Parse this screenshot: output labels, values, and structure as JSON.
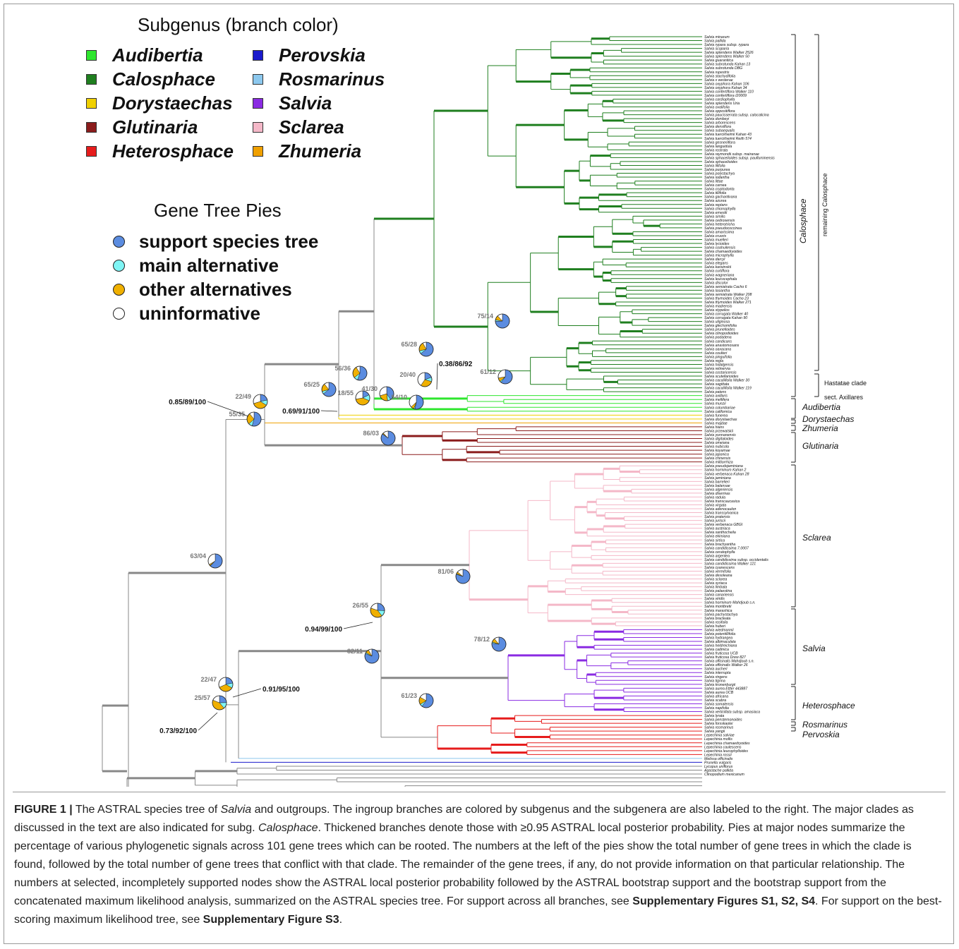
{
  "legend": {
    "title": "Subgenus (branch color)",
    "items": [
      {
        "label": "Audibertia",
        "color": "#2ee62e"
      },
      {
        "label": "Calosphace",
        "color": "#1f7f1f"
      },
      {
        "label": "Dorystaechas",
        "color": "#f0d000"
      },
      {
        "label": "Glutinaria",
        "color": "#8b1c1c"
      },
      {
        "label": "Heterosphace",
        "color": "#e61c1c"
      },
      {
        "label": "Perovskia",
        "color": "#1a1acc"
      },
      {
        "label": "Rosmarinus",
        "color": "#8cc8ee"
      },
      {
        "label": "Salvia",
        "color": "#8a2be2"
      },
      {
        "label": "Sclarea",
        "color": "#f4b8c8"
      },
      {
        "label": "Zhumeria",
        "color": "#f0a000"
      }
    ]
  },
  "pies_legend": {
    "title": "Gene Tree Pies",
    "items": [
      {
        "label": "support species tree",
        "color": "#5b8ce0"
      },
      {
        "label": "main alternative",
        "color": "#7ff5f5"
      },
      {
        "label": "other alternatives",
        "color": "#f0b000"
      },
      {
        "label": "uninformative",
        "color": "#ffffff"
      }
    ]
  },
  "clades": {
    "calosphace": "Calosphace",
    "remaining": "remaining Calosphace",
    "hastatae": "Hastatae clade",
    "axillares": "sect. Axillares",
    "audibertia": "Audibertia",
    "dorystaechas": "Dorystaechas",
    "zhumeria": "Zhumeria",
    "glutinaria": "Glutinaria",
    "sclarea": "Sclarea",
    "salvia": "Salvia",
    "heterosphace": "Heterosphace",
    "rosmarinus": "Rosmarinus",
    "pervoskia": "Pervoskia"
  },
  "pies": [
    {
      "label": "75/14",
      "support": 75,
      "conflict": 14
    },
    {
      "label": "65/28",
      "support": 65,
      "conflict": 28
    },
    {
      "label": "56/36",
      "support": 56,
      "conflict": 36
    },
    {
      "label": "20/40",
      "support": 20,
      "conflict": 40
    },
    {
      "label": "61/12",
      "support": 61,
      "conflict": 12
    },
    {
      "label": "65/25",
      "support": 65,
      "conflict": 25
    },
    {
      "label": "18/55",
      "support": 18,
      "conflict": 55
    },
    {
      "label": "41/30",
      "support": 41,
      "conflict": 30
    },
    {
      "label": "54/10",
      "support": 54,
      "conflict": 10
    },
    {
      "label": "22/49",
      "support": 22,
      "conflict": 49
    },
    {
      "label": "55/35",
      "support": 55,
      "conflict": 35
    },
    {
      "label": "86/03",
      "support": 86,
      "conflict": 3
    },
    {
      "label": "63/04",
      "support": 63,
      "conflict": 4
    },
    {
      "label": "81/06",
      "support": 81,
      "conflict": 6
    },
    {
      "label": "26/55",
      "support": 26,
      "conflict": 55
    },
    {
      "label": "78/12",
      "support": 78,
      "conflict": 12
    },
    {
      "label": "82/11",
      "support": 82,
      "conflict": 11
    },
    {
      "label": "22/47",
      "support": 22,
      "conflict": 47
    },
    {
      "label": "25/57",
      "support": 25,
      "conflict": 57
    },
    {
      "label": "61/23",
      "support": 61,
      "conflict": 23
    }
  ],
  "support_labels": [
    "0.38/86/92",
    "0.85/89/100",
    "0.69/91/100",
    "0.94/99/100",
    "0.91/95/100",
    "0.73/92/100"
  ],
  "taxa": [
    "Salvia minarum",
    "Salvia pallida",
    "Salvia rypara subsp. rypara",
    "Salvia scoparia",
    "Salvia splendens Walker 2526",
    "Salvia splendens Walker 50",
    "Salvia guaranitica",
    "Salvia subrotunda Kahan 13",
    "Salvia subrotunda DBG",
    "Salvia rupestris",
    "Salvia stachydifolia",
    "Salvia x westerae",
    "Salvia oxyphora Kahan 106",
    "Salvia oxyphora Kahan 34",
    "Salvia confertiflora Walker 110",
    "Salvia confertiflora I20009",
    "Salvia cardiophylla",
    "Salvia splendens Uria",
    "Salvia ovalifolia",
    "Salvia oppositiflora",
    "Salvia paucisserrata subsp. calocalicina",
    "Salvia dombeyi",
    "Salvia arborescens",
    "Salvia densiflora",
    "Salvia subaequalis",
    "Salvia tuerckheimii Kahan 43",
    "Salvia tuerckheimii Reith 574",
    "Salvia gesneriiflora",
    "Salvia languidula",
    "Salvia rostrata",
    "Salvia raymondii subsp. mairanae",
    "Salvia sphacelioides subsp. paufluminensis",
    "Salvia sphacelioides",
    "Salvia lilifolia",
    "Salvia purpurea",
    "Salvia polystachya",
    "Salvia iodantha",
    "Salvia littae",
    "Salvia carnea",
    "Salvia cryptodonta",
    "Salvia tiliifolia",
    "Salvia gachantivana",
    "Salvia azurea",
    "Salvia reptans",
    "Salvia chionophylla",
    "Salvia ernestii",
    "Salvia similis",
    "Salvia cedrosensis",
    "Salvia heterotricha",
    "Salvia pseudococcinea",
    "Salvia amarissima",
    "Salvia cruoris",
    "Salvia muelleri",
    "Salvia lycioides",
    "Salvia coahuilensis",
    "Salvia chamaedryoides",
    "Salvia microphylla",
    "Salvia darcyi",
    "Salvia elegans",
    "Salvia karwinskii",
    "Salvia curtiflora",
    "Salvia wagneriana",
    "Salvia leucocephala",
    "Salvia discolor",
    "Salvia semiatrata Cacho 6",
    "Salvia lasiantha",
    "Salvia semiatrata Walker 208",
    "Salvia thymoides Cacho 23",
    "Salvia thymoides Walker 271",
    "Salvia madrensis",
    "Salvia stypelios",
    "Salvia corrugata Walker 40",
    "Salvia corrugata Kahan 90",
    "Salvia uliginosa",
    "Salvia glechomifolia",
    "Salvia prunelloides",
    "Salvia clinopodioides",
    "Salvia podadena",
    "Salvia candicans",
    "Salvia anastomosans",
    "Salvia oaxacana",
    "Salvia coulteri",
    "Salvia pinguifolia",
    "Salvia regla",
    "Salvia hidalgensis",
    "Salvia retinervia",
    "Salvia costaricensis",
    "Salvia scutellarioides",
    "Salvia cacaliifolia Walker 30",
    "Salvia sagittata",
    "Salvia cacaliifolia Walker 119",
    "Salvia patens",
    "Salvia axillaris",
    "Salvia mellifera",
    "Salvia munzii",
    "Salvia columbariae",
    "Salvia californica",
    "Salvia funerea",
    "Salvia dorystaechas",
    "Salvia majdae",
    "Salvia hians",
    "Salvia przewalskii",
    "Salvia yunnanensis",
    "Salvia digitaloides",
    "Salvia omeiana",
    "Salvia nubicola",
    "Salvia koyamae",
    "Salvia japonica",
    "Salvia chinensis",
    "Salvia miltiorrhiza",
    "Salvia pseudojaminiana",
    "Salvia horminum Kahan 2",
    "Salvia verbenaca Kahan 28",
    "Salvia jaminiana",
    "Salvia barrelieri",
    "Salvia balansae",
    "Salvia algeriensis",
    "Salvia disermas",
    "Salvia radula",
    "Salvia transcaucasica",
    "Salvia virgata",
    "Salvia adenocaulon",
    "Salvia transsylvanica",
    "Salvia pratensis",
    "Salvia juriscii",
    "Salvia verbenaca GBGI",
    "Salvia austriaca",
    "Salvia xanthocheila",
    "Salvia ekimiana",
    "Salvia sirtica",
    "Salvia brachyantha",
    "Salvia candidissima 7.0007",
    "Salvia ceratophylla",
    "Salvia argentea",
    "Salvia candidissima subsp. occidentalis",
    "Salvia candidissima Walker 121",
    "Salvia cyanescens",
    "Salvia vermifolia",
    "Salvia desoleana",
    "Salvia sclarea",
    "Salvia syriaca",
    "Salvia limbata",
    "Salvia palaestina",
    "Salvia canariensis",
    "Salvia viridis",
    "Salvia horminum Mahdjoub s.n.",
    "Salvia montbretii",
    "Salvia marashica",
    "Salvia pachystachya",
    "Salvia bracteata",
    "Salvia rosifolia",
    "Salvia huberi",
    "Salvia wiedmannii",
    "Salvia potentillifolia",
    "Salvia hydrangea",
    "Salvia albimaculata",
    "Salvia heldreichiana",
    "Salvia cadmica",
    "Salvia fruticosa UCB",
    "Salvia fruticosa Drew 827",
    "Salvia officinalis Mahdjoub s.n.",
    "Salvia officinalis Walker 26",
    "Salvia aucheri",
    "Salvia interrupta",
    "Salvia ringens",
    "Salvia tigrina",
    "Salvia kronenburgii",
    "Salvia aurea Ettler 443887",
    "Salvia aurea UCB",
    "Salvia africana",
    "Salvia scabra",
    "Salvia somalensis",
    "Salvia napifolia",
    "Salvia verticillata subsp. amasiaca",
    "Salvia lyrata",
    "Salvia penstemonoides",
    "Salvia forsskaolei",
    "Salvia rosmarinus",
    "Salvia yangii",
    "Lepechinia salviae",
    "Lepechinia mollis",
    "Lepechinia chamaedryoides",
    "Lepechinia caulescens",
    "Lepechinia leucophylloides",
    "Lepechinia rossii",
    "Melissa officinalis",
    "Prunella vulgaris",
    "Lycopus uniflorus",
    "Agastache pallida",
    "Clinopodium mexicanum"
  ],
  "caption": {
    "fig": "FIGURE 1 |",
    "p1": " The ASTRAL species tree of ",
    "italic1": "Salvia",
    "p2": " and outgroups. The ingroup branches are colored by subgenus and the subgenera are also labeled to the right. The major clades as discussed in the text are also indicated for subg. ",
    "italic2": "Calosphace",
    "p3": ". Thickened branches denote those with ≥0.95 ASTRAL local posterior probability. Pies at major nodes summarize the percentage of various phylogenetic signals across 101 gene trees which can be rooted. The numbers at the left of the pies show the total number of gene trees in which the clade is found, followed by the total number of gene trees that conflict with that clade. The remainder of the gene trees, if any, do not provide information on that particular relationship. The numbers at selected, incompletely supported nodes show the ASTRAL local posterior probability followed by the ASTRAL bootstrap support and the bootstrap support from the concatenated maximum likelihood analysis, summarized on the ASTRAL species tree. For support across all branches, see ",
    "bold1": "Supplementary Figures S1, S2, S4",
    "p4": ". For support on the best-scoring maximum likelihood tree, see ",
    "bold2": "Supplementary Figure S3",
    "p5": "."
  }
}
